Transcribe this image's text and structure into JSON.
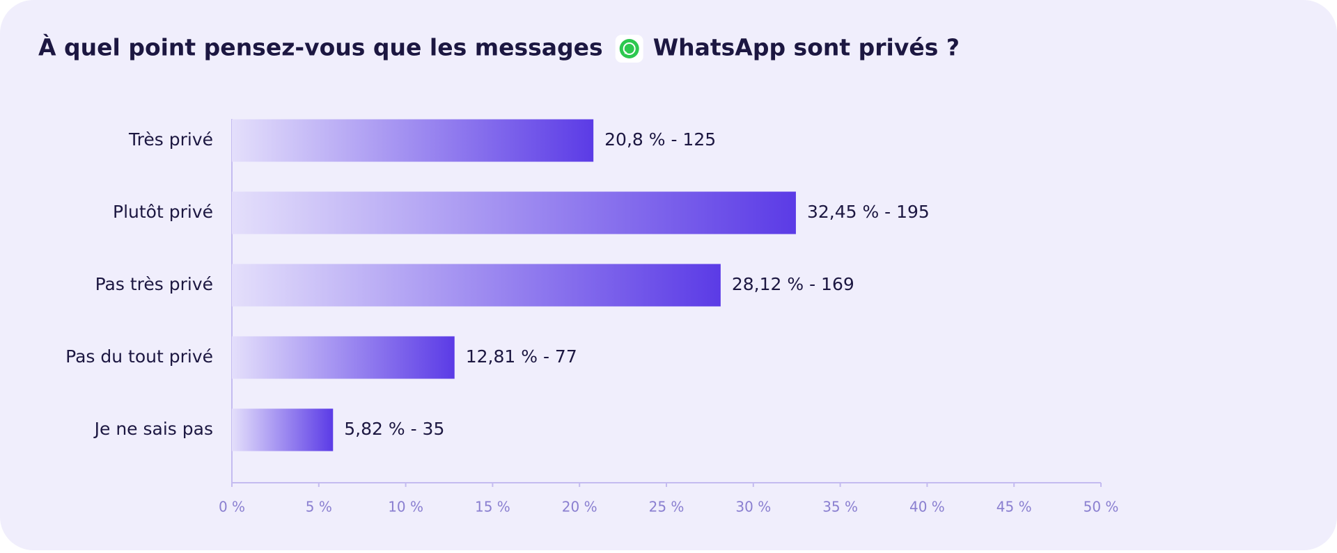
{
  "chart_data": {
    "type": "bar",
    "orientation": "horizontal",
    "title": [
      "À quel point pensez-vous que les messages",
      "WhatsApp sont privés ?"
    ],
    "categories": [
      "Très privé",
      "Plutôt privé",
      "Pas très privé",
      "Pas du tout privé",
      "Je ne sais pas"
    ],
    "values": [
      20.8,
      32.45,
      28.12,
      12.81,
      5.82
    ],
    "value_labels": [
      "20,8 % - 125",
      "32,45 % - 195",
      "28,12 % - 169",
      "12,81 % - 77",
      "5,82 % - 35"
    ],
    "color": "#5b3be6",
    "xlim": [
      0,
      50
    ],
    "xticks": [
      {
        "value": 0,
        "label": "0 %"
      },
      {
        "value": 5,
        "label": "5 %"
      },
      {
        "value": 10,
        "label": "10 %"
      },
      {
        "value": 15,
        "label": "15 %"
      },
      {
        "value": 20,
        "label": "20 %"
      },
      {
        "value": 25,
        "label": "25 %"
      },
      {
        "value": 30,
        "label": "30 %"
      },
      {
        "value": 35,
        "label": "35 %"
      },
      {
        "value": 40,
        "label": "40 %"
      },
      {
        "value": 45,
        "label": "45 %"
      },
      {
        "value": 50,
        "label": "50 %"
      }
    ],
    "grid": false
  }
}
